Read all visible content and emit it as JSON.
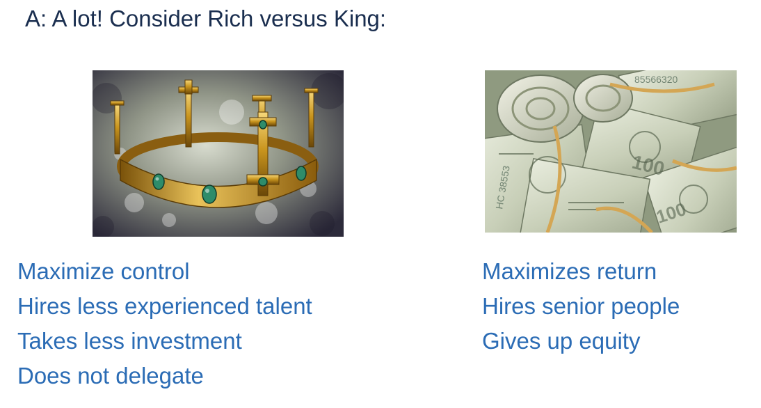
{
  "slide": {
    "heading": "A: A lot! Consider Rich versus King:"
  },
  "images": {
    "crown": {
      "icon": "crown-icon"
    },
    "money": {
      "icon": "money-rolls-icon"
    }
  },
  "king": {
    "items": [
      "Maximize control",
      "Hires less experienced talent",
      "Takes less investment",
      "Does not delegate"
    ]
  },
  "rich": {
    "items": [
      "Maximizes return",
      "Hires senior people",
      "Gives up equity"
    ]
  },
  "colors": {
    "heading": "#1a2e4f",
    "list_text": "#2b6cb5"
  }
}
